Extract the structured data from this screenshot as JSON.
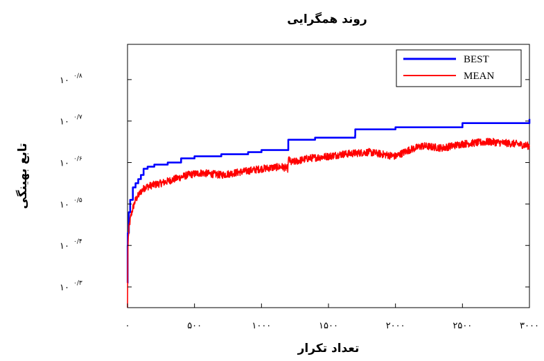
{
  "chart_data": {
    "type": "line",
    "title": "روند همگرایی",
    "xlabel": "تعداد تکرار",
    "ylabel": "تابع بهینگی",
    "xlim": [
      0,
      3000
    ],
    "ylim": [
      10.25,
      10.885
    ],
    "x_ticks": [
      {
        "value": 0,
        "label": "۰"
      },
      {
        "value": 500,
        "label": "۵۰۰"
      },
      {
        "value": 1000,
        "label": "۱۰۰۰"
      },
      {
        "value": 1500,
        "label": "۱۵۰۰"
      },
      {
        "value": 2000,
        "label": "۲۰۰۰"
      },
      {
        "value": 2500,
        "label": "۲۵۰۰"
      },
      {
        "value": 3000,
        "label": "۳۰۰۰"
      }
    ],
    "y_ticks": [
      {
        "value": 10.3,
        "base": "۱۰",
        "sup": "۰/۳"
      },
      {
        "value": 10.4,
        "base": "۱۰",
        "sup": "۰/۴"
      },
      {
        "value": 10.5,
        "base": "۱۰",
        "sup": "۰/۵"
      },
      {
        "value": 10.6,
        "base": "۱۰",
        "sup": "۰/۶"
      },
      {
        "value": 10.7,
        "base": "۱۰",
        "sup": "۰/۷"
      },
      {
        "value": 10.8,
        "base": "۱۰",
        "sup": "۰/۸"
      }
    ],
    "legend_position": "top-right",
    "grid": false,
    "series": [
      {
        "name": "BEST",
        "color": "#0000ff",
        "x": [
          0,
          1,
          2,
          10,
          20,
          40,
          60,
          80,
          100,
          120,
          150,
          200,
          300,
          400,
          500,
          700,
          900,
          1000,
          1199,
          1200,
          1400,
          1699,
          1700,
          2000,
          2500,
          3000
        ],
        "y": [
          10.31,
          10.4,
          10.43,
          10.48,
          10.51,
          10.54,
          10.55,
          10.56,
          10.57,
          10.585,
          10.59,
          10.595,
          10.6,
          10.61,
          10.615,
          10.62,
          10.625,
          10.63,
          10.63,
          10.655,
          10.66,
          10.665,
          10.68,
          10.685,
          10.695,
          10.705
        ]
      },
      {
        "name": "MEAN",
        "color": "#ff0000",
        "noise": 0.009,
        "x": [
          0,
          1,
          3,
          8,
          15,
          25,
          40,
          60,
          80,
          100,
          130,
          180,
          250,
          350,
          450,
          550,
          700,
          900,
          1000,
          1150,
          1199,
          1200,
          1220,
          1350,
          1500,
          1600,
          1800,
          2000,
          2100,
          2200,
          2350,
          2500,
          2700,
          2900,
          3000
        ],
        "y": [
          10.25,
          10.33,
          10.4,
          10.43,
          10.45,
          10.47,
          10.49,
          10.51,
          10.52,
          10.53,
          10.54,
          10.545,
          10.55,
          10.56,
          10.57,
          10.575,
          10.57,
          10.58,
          10.585,
          10.59,
          10.585,
          10.61,
          10.6,
          10.61,
          10.615,
          10.62,
          10.625,
          10.615,
          10.63,
          10.64,
          10.635,
          10.645,
          10.65,
          10.645,
          10.64
        ]
      }
    ]
  }
}
